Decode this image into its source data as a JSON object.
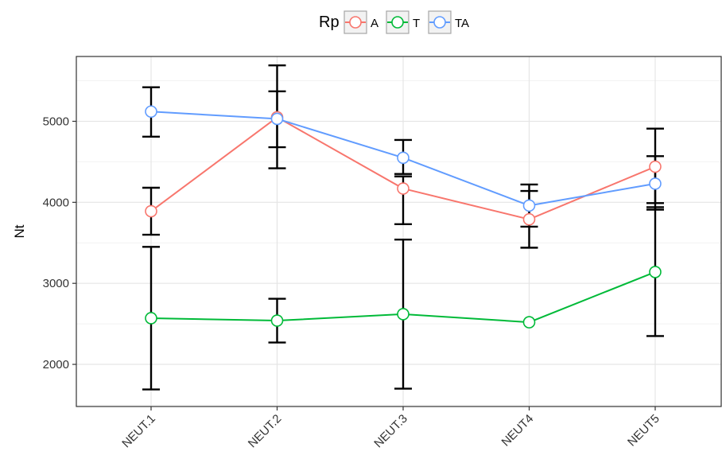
{
  "chart_data": {
    "type": "line",
    "ylabel": "Nt",
    "xlabel": "",
    "categories": [
      "NEUT.1",
      "NEUT.2",
      "NEUT.3",
      "NEUT4",
      "NEUT5"
    ],
    "yticks": [
      2000,
      3000,
      4000,
      5000
    ],
    "ylim": [
      1480,
      5800
    ],
    "grid": true,
    "legend": {
      "title": "Rp",
      "position": "top"
    },
    "series": [
      {
        "name": "A",
        "color": "#f8766d",
        "values": [
          3890,
          5050,
          4170,
          3790,
          4440
        ],
        "error_low": [
          3600,
          4680,
          3730,
          3440,
          3990
        ],
        "error_high": [
          4180,
          5370,
          4320,
          4140,
          4910
        ]
      },
      {
        "name": "T",
        "color": "#00ba38",
        "values": [
          2570,
          2540,
          2620,
          2520,
          3140
        ],
        "error_low": [
          1690,
          2270,
          1700,
          2520,
          2350
        ],
        "error_high": [
          3450,
          2810,
          3540,
          2520,
          3940
        ]
      },
      {
        "name": "TA",
        "color": "#619cff",
        "values": [
          5120,
          5030,
          4550,
          3960,
          4230
        ],
        "error_low": [
          4810,
          4420,
          4350,
          3700,
          3910
        ],
        "error_high": [
          5420,
          5690,
          4770,
          4220,
          4570
        ]
      }
    ]
  }
}
